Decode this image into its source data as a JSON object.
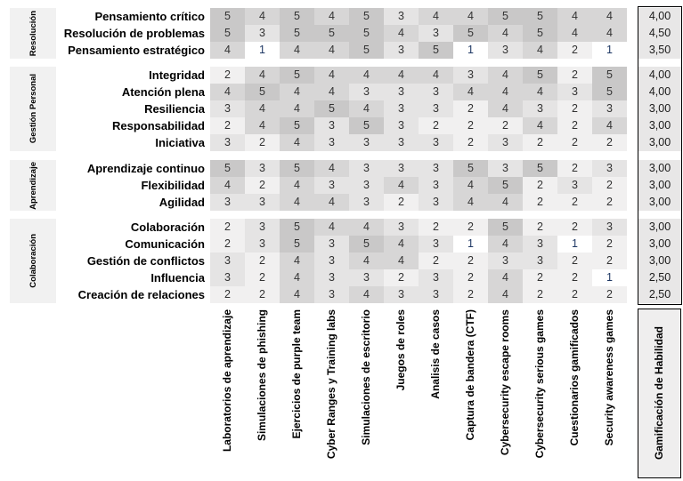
{
  "matrix": {
    "columns": [
      "Laboratorios de aprendizaje",
      "Simulaciones de phishing",
      "Ejercicios de purple team",
      "Cyber Ranges y Training labs",
      "Simulaciones de escritorio",
      "Juegos de roles",
      "Analisis de casos",
      "Captura de bandera (CTF)",
      "Cybersecurity escape rooms",
      "Cybersecurity serious games",
      "Cuestionarios gamificados",
      "Security awareness games"
    ],
    "final_column": "Gamificación de Habilidad",
    "groups": [
      {
        "category": "Resolución",
        "rows": [
          {
            "label": "Pensamiento crítico",
            "values": [
              5,
              4,
              5,
              4,
              5,
              3,
              4,
              4,
              5,
              5,
              4,
              4
            ],
            "score": "4,00"
          },
          {
            "label": "Resolución de problemas",
            "values": [
              5,
              3,
              5,
              5,
              5,
              4,
              3,
              5,
              4,
              5,
              4,
              4
            ],
            "score": "4,50"
          },
          {
            "label": "Pensamiento estratégico",
            "values": [
              4,
              1,
              4,
              4,
              5,
              3,
              5,
              1,
              3,
              4,
              2,
              1
            ],
            "score": "3,50"
          }
        ]
      },
      {
        "category": "Gestión Personal",
        "rows": [
          {
            "label": "Integridad",
            "values": [
              2,
              4,
              5,
              4,
              4,
              4,
              4,
              3,
              4,
              5,
              2,
              5
            ],
            "score": "4,00"
          },
          {
            "label": "Atención plena",
            "values": [
              4,
              5,
              4,
              4,
              3,
              3,
              3,
              4,
              4,
              4,
              3,
              5
            ],
            "score": "4,00"
          },
          {
            "label": "Resiliencia",
            "values": [
              3,
              4,
              4,
              5,
              4,
              3,
              3,
              2,
              4,
              3,
              2,
              3
            ],
            "score": "3,00"
          },
          {
            "label": "Responsabilidad",
            "values": [
              2,
              4,
              5,
              3,
              5,
              3,
              2,
              2,
              2,
              4,
              2,
              4
            ],
            "score": "3,00"
          },
          {
            "label": "Iniciativa",
            "values": [
              3,
              2,
              4,
              3,
              3,
              3,
              3,
              2,
              3,
              2,
              2,
              2
            ],
            "score": "3,00"
          }
        ]
      },
      {
        "category": "Aprendizaje",
        "rows": [
          {
            "label": "Aprendizaje continuo",
            "values": [
              5,
              3,
              5,
              4,
              3,
              3,
              3,
              5,
              3,
              5,
              2,
              3
            ],
            "score": "3,00"
          },
          {
            "label": "Flexibilidad",
            "values": [
              4,
              2,
              4,
              3,
              3,
              4,
              3,
              4,
              5,
              2,
              3,
              2
            ],
            "score": "3,00"
          },
          {
            "label": "Agilidad",
            "values": [
              3,
              3,
              4,
              4,
              3,
              2,
              3,
              4,
              4,
              2,
              2,
              2
            ],
            "score": "3,00"
          }
        ]
      },
      {
        "category": "Colaboración",
        "rows": [
          {
            "label": "Colaboración",
            "values": [
              2,
              3,
              5,
              4,
              4,
              3,
              2,
              2,
              5,
              2,
              2,
              3
            ],
            "score": "3,00"
          },
          {
            "label": "Comunicación",
            "values": [
              2,
              3,
              5,
              3,
              5,
              4,
              3,
              1,
              4,
              3,
              1,
              2
            ],
            "score": "3,00"
          },
          {
            "label": "Gestión de conflictos",
            "values": [
              3,
              2,
              4,
              3,
              4,
              4,
              2,
              2,
              3,
              3,
              2,
              2
            ],
            "score": "3,00"
          },
          {
            "label": "Influencia",
            "values": [
              3,
              2,
              4,
              3,
              3,
              2,
              3,
              2,
              4,
              2,
              2,
              1
            ],
            "score": "2,50"
          },
          {
            "label": "Creación de relaciones",
            "values": [
              2,
              2,
              4,
              3,
              4,
              3,
              3,
              2,
              4,
              2,
              2,
              2
            ],
            "score": "2,50"
          }
        ]
      }
    ],
    "colors": {
      "heat": {
        "1": "#ffffff",
        "2": "#f1f0f0",
        "3": "#e5e4e4",
        "4": "#d7d6d6",
        "5": "#c9c8c8"
      },
      "value_text": "#333333",
      "value_one_text": "#1f3864",
      "category_box_bg": "#f1f1f1",
      "score_cell_bg": "#e8e7e7",
      "final_header_bg": "#efeeee",
      "border": "#000000"
    }
  },
  "chart_data": {
    "type": "heatmap",
    "title": "Gamificación de Habilidad",
    "x_categories": [
      "Laboratorios de aprendizaje",
      "Simulaciones de phishing",
      "Ejercicios de purple team",
      "Cyber Ranges y Training labs",
      "Simulaciones de escritorio",
      "Juegos de roles",
      "Analisis de casos",
      "Captura de bandera (CTF)",
      "Cybersecurity escape rooms",
      "Cybersecurity serious games",
      "Cuestionarios gamificados",
      "Security awareness games"
    ],
    "y_categories": [
      "Pensamiento crítico",
      "Resolución de problemas",
      "Pensamiento estratégico",
      "Integridad",
      "Atención plena",
      "Resiliencia",
      "Responsabilidad",
      "Iniciativa",
      "Aprendizaje continuo",
      "Flexibilidad",
      "Agilidad",
      "Colaboración",
      "Comunicación",
      "Gestión de conflictos",
      "Influencia",
      "Creación de relaciones"
    ],
    "y_group_labels": [
      "Resolución",
      "Gestión Personal",
      "Aprendizaje",
      "Colaboración"
    ],
    "values": [
      [
        5,
        4,
        5,
        4,
        5,
        3,
        4,
        4,
        5,
        5,
        4,
        4
      ],
      [
        5,
        3,
        5,
        5,
        5,
        4,
        3,
        5,
        4,
        5,
        4,
        4
      ],
      [
        4,
        1,
        4,
        4,
        5,
        3,
        5,
        1,
        3,
        4,
        2,
        1
      ],
      [
        2,
        4,
        5,
        4,
        4,
        4,
        4,
        3,
        4,
        5,
        2,
        5
      ],
      [
        4,
        5,
        4,
        4,
        3,
        3,
        3,
        4,
        4,
        4,
        3,
        5
      ],
      [
        3,
        4,
        4,
        5,
        4,
        3,
        3,
        2,
        4,
        3,
        2,
        3
      ],
      [
        2,
        4,
        5,
        3,
        5,
        3,
        2,
        2,
        2,
        4,
        2,
        4
      ],
      [
        3,
        2,
        4,
        3,
        3,
        3,
        3,
        2,
        3,
        2,
        2,
        2
      ],
      [
        5,
        3,
        5,
        4,
        3,
        3,
        3,
        5,
        3,
        5,
        2,
        3
      ],
      [
        4,
        2,
        4,
        3,
        3,
        4,
        3,
        4,
        5,
        2,
        3,
        2
      ],
      [
        3,
        3,
        4,
        4,
        3,
        2,
        3,
        4,
        4,
        2,
        2,
        2
      ],
      [
        2,
        3,
        5,
        4,
        4,
        3,
        2,
        2,
        5,
        2,
        2,
        3
      ],
      [
        2,
        3,
        5,
        3,
        5,
        4,
        3,
        1,
        4,
        3,
        1,
        2
      ],
      [
        3,
        2,
        4,
        3,
        4,
        4,
        2,
        2,
        3,
        3,
        2,
        2
      ],
      [
        3,
        2,
        4,
        3,
        3,
        2,
        3,
        2,
        4,
        2,
        2,
        1
      ],
      [
        2,
        2,
        4,
        3,
        4,
        3,
        3,
        2,
        4,
        2,
        2,
        2
      ]
    ],
    "final_column": {
      "label": "Gamificación de Habilidad",
      "values": [
        "4,00",
        "4,50",
        "3,50",
        "4,00",
        "4,00",
        "3,00",
        "3,00",
        "3,00",
        "3,00",
        "3,00",
        "3,00",
        "3,00",
        "3,00",
        "3,00",
        "2,50",
        "2,50"
      ]
    },
    "value_range": [
      1,
      5
    ],
    "colorscale": "white (1) to gray (5)",
    "grid": false,
    "legend": "none"
  }
}
